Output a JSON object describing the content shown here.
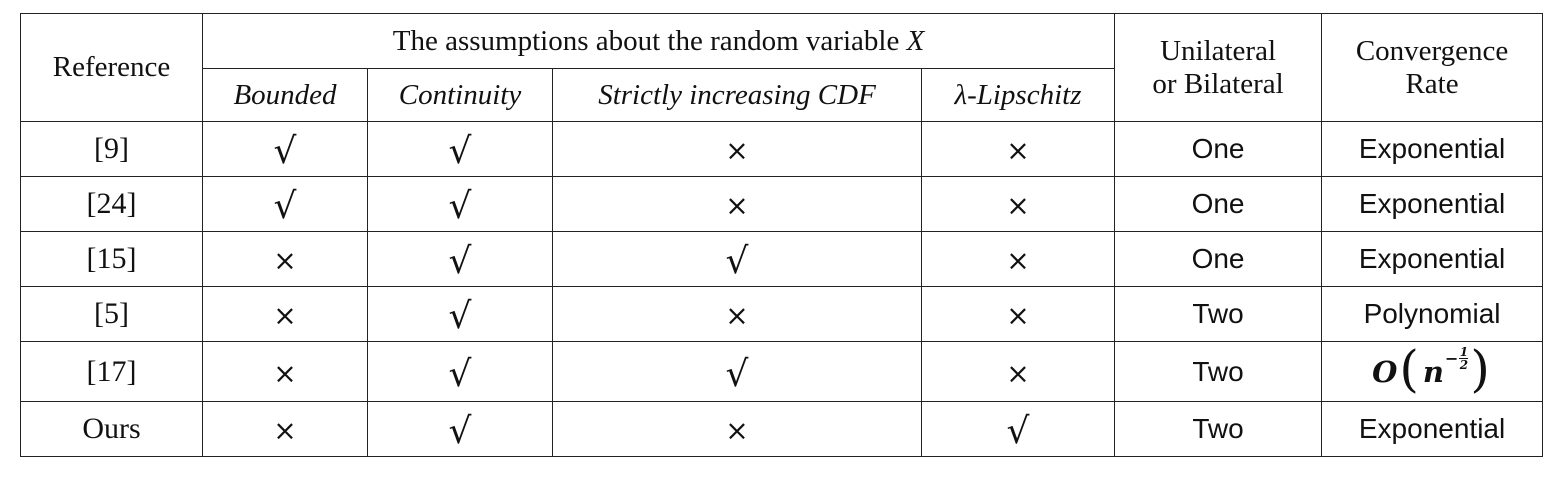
{
  "table": {
    "header": {
      "reference": "Reference",
      "assumptions_prefix": "The assumptions about the random variable",
      "assumptions_var": "X",
      "sub_columns": [
        "Bounded",
        "Continuity",
        "Strictly increasing CDF",
        "-Lipschitz"
      ],
      "lipschitz_symbol": "λ",
      "unilateral_line1": "Unilateral",
      "unilateral_line2": "or Bilateral",
      "rate_line1": "Convergence",
      "rate_line2": "Rate"
    },
    "check_symbol": "√",
    "cross_symbol": "×",
    "rows": [
      {
        "ref": "[9]",
        "bounded": "√",
        "continuity": "√",
        "strict_cdf": "×",
        "lipschitz": "×",
        "sides": "One",
        "rate": "Exponential"
      },
      {
        "ref": "[24]",
        "bounded": "√",
        "continuity": "√",
        "strict_cdf": "×",
        "lipschitz": "×",
        "sides": "One",
        "rate": "Exponential"
      },
      {
        "ref": "[15]",
        "bounded": "×",
        "continuity": "√",
        "strict_cdf": "√",
        "lipschitz": "×",
        "sides": "One",
        "rate": "Exponential"
      },
      {
        "ref": "[5]",
        "bounded": "×",
        "continuity": "√",
        "strict_cdf": "×",
        "lipschitz": "×",
        "sides": "Two",
        "rate": "Polynomial"
      },
      {
        "ref": "[17]",
        "bounded": "×",
        "continuity": "√",
        "strict_cdf": "√",
        "lipschitz": "×",
        "sides": "Two",
        "rate_math": {
          "O": "O",
          "open": "(",
          "base": "n",
          "minus": "−",
          "num": "1",
          "den": "2",
          "close": ")"
        }
      },
      {
        "ref": "Ours",
        "bounded": "×",
        "continuity": "√",
        "strict_cdf": "×",
        "lipschitz": "√",
        "sides": "Two",
        "rate": "Exponential"
      }
    ]
  }
}
